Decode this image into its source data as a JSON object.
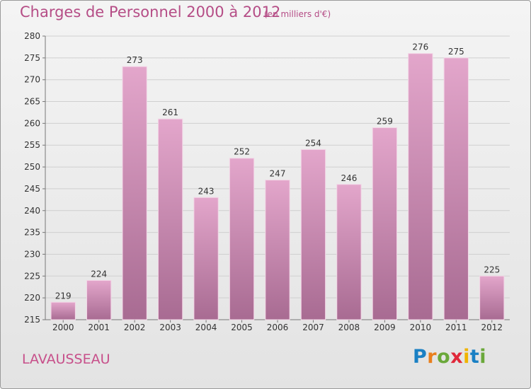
{
  "header": {
    "title": "Charges de Personnel 2000 à 2012",
    "subtitle": "(en milliers d'€)"
  },
  "footer": {
    "commune": "LAVAUSSEAU",
    "logo_letters": [
      "P",
      "r",
      "o",
      "x",
      "i",
      "t",
      "i"
    ]
  },
  "colors": {
    "title": "#b54d86",
    "bar_top": "#e3a6cb",
    "bar_bottom": "#a86b92",
    "grid": "#cfcfcf"
  },
  "chart_data": {
    "type": "bar",
    "categories": [
      "2000",
      "2001",
      "2002",
      "2003",
      "2004",
      "2005",
      "2006",
      "2007",
      "2008",
      "2009",
      "2010",
      "2011",
      "2012"
    ],
    "values": [
      219,
      224,
      273,
      261,
      243,
      252,
      247,
      254,
      246,
      259,
      276,
      275,
      225
    ],
    "ylim": [
      215,
      280
    ],
    "yticks": [
      215,
      220,
      225,
      230,
      235,
      240,
      245,
      250,
      255,
      260,
      265,
      270,
      275,
      280
    ],
    "grid": true,
    "data_labels": true
  }
}
